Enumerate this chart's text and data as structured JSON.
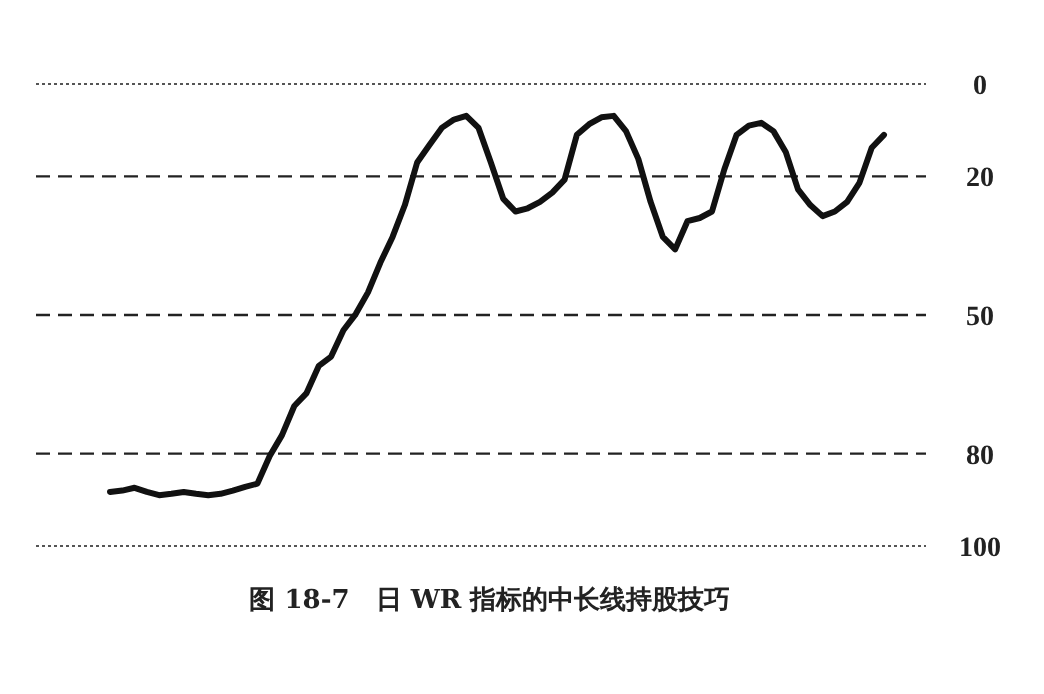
{
  "chart_data": {
    "type": "line",
    "title": "图 18-7　日 WR 指标的中长线持股技巧",
    "categories": [
      null,
      null,
      null,
      null,
      null,
      null,
      null,
      null,
      null,
      null,
      null,
      null,
      null,
      null,
      null,
      null,
      null,
      null,
      null,
      null,
      null,
      null,
      null,
      null,
      null,
      null,
      null,
      null,
      null,
      null,
      null,
      null,
      null,
      null,
      null,
      null,
      null,
      null,
      null,
      null,
      null,
      null,
      null,
      null,
      null,
      null,
      null,
      null,
      null,
      null,
      null,
      null,
      null,
      null,
      null,
      null,
      null,
      null,
      null,
      null,
      null,
      null,
      null,
      null
    ],
    "series": [
      {
        "color": "#111111",
        "values": [
          88.3,
          88,
          87.4,
          88.3,
          89,
          88.7,
          88.3,
          88.7,
          89,
          88.7,
          88,
          87.2,
          86.5,
          80.5,
          76,
          69.7,
          66.9,
          61,
          59,
          53.3,
          49.8,
          45.1,
          38.7,
          33.1,
          26.2,
          17,
          13.2,
          9.5,
          7.7,
          6.9,
          9.5,
          17,
          24.8,
          27.6,
          26.9,
          25.5,
          23.5,
          20.7,
          11,
          8.7,
          7.2,
          6.9,
          10.2,
          16.2,
          25.5,
          33.1,
          35.8,
          29.7,
          29,
          27.6,
          18.5,
          11,
          9,
          8.4,
          10.2,
          14.7,
          22.8,
          26.2,
          28.6,
          27.6,
          25.5,
          21.4,
          13.8,
          11
        ]
      }
    ],
    "ylim": [
      100,
      0
    ],
    "yticks": [
      0,
      20,
      50,
      80,
      100
    ],
    "grid": false,
    "marker": "none",
    "line_style": "solid",
    "ref_lines": [
      {
        "axis": "y",
        "value": 0,
        "line_style": "dotted",
        "color": "#555555"
      },
      {
        "axis": "y",
        "value": 20,
        "line_style": "dashed",
        "color": "#222222"
      },
      {
        "axis": "y",
        "value": 50,
        "line_style": "dashed",
        "color": "#222222"
      },
      {
        "axis": "y",
        "value": 80,
        "line_style": "dashed",
        "color": "#222222"
      },
      {
        "axis": "y",
        "value": 100,
        "line_style": "dotted",
        "color": "#555555"
      }
    ]
  }
}
